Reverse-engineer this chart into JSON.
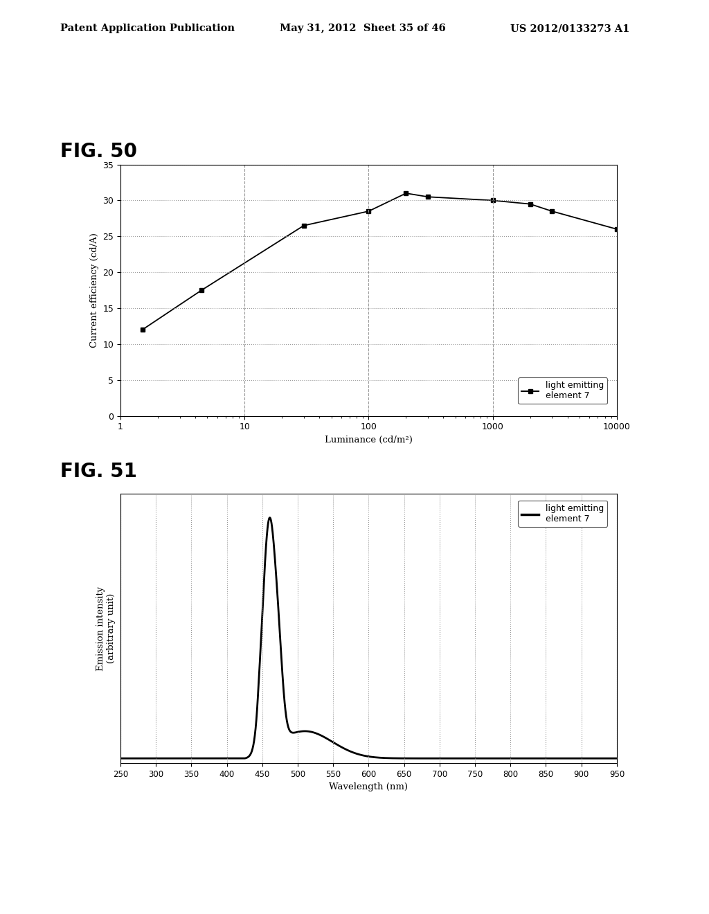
{
  "fig50": {
    "title": "FIG. 50",
    "x_data": [
      1.5,
      4.5,
      30,
      100,
      200,
      300,
      1000,
      2000,
      3000,
      10000
    ],
    "y_data": [
      12.0,
      17.5,
      26.5,
      28.5,
      31.0,
      30.5,
      30.0,
      29.5,
      28.5,
      26.0
    ],
    "xlabel": "Luminance (cd/m²)",
    "ylabel": "Current efficiency (cd/A)",
    "ylim": [
      0,
      35
    ],
    "yticks": [
      0,
      5,
      10,
      15,
      20,
      25,
      30,
      35
    ],
    "legend_label": "light emitting\nelement 7",
    "line_color": "#000000",
    "marker": "s",
    "marker_size": 5,
    "grid_color": "#999999",
    "grid_style_h": ":",
    "grid_style_v": "--"
  },
  "fig51": {
    "title": "FIG. 51",
    "xlabel": "Wavelength (nm)",
    "ylabel": "Emission intensity\n(arbitrary unit)",
    "legend_label": "light emitting\nelement 7",
    "line_color": "#000000",
    "xlim": [
      250,
      950
    ],
    "xticks": [
      250,
      300,
      350,
      400,
      450,
      500,
      550,
      600,
      650,
      700,
      750,
      800,
      850,
      900,
      950
    ],
    "grid_color": "#999999",
    "grid_style": ":"
  },
  "header_left": "Patent Application Publication",
  "header_center": "May 31, 2012  Sheet 35 of 46",
  "header_right": "US 2012/0133273 A1",
  "bg_color": "#ffffff"
}
